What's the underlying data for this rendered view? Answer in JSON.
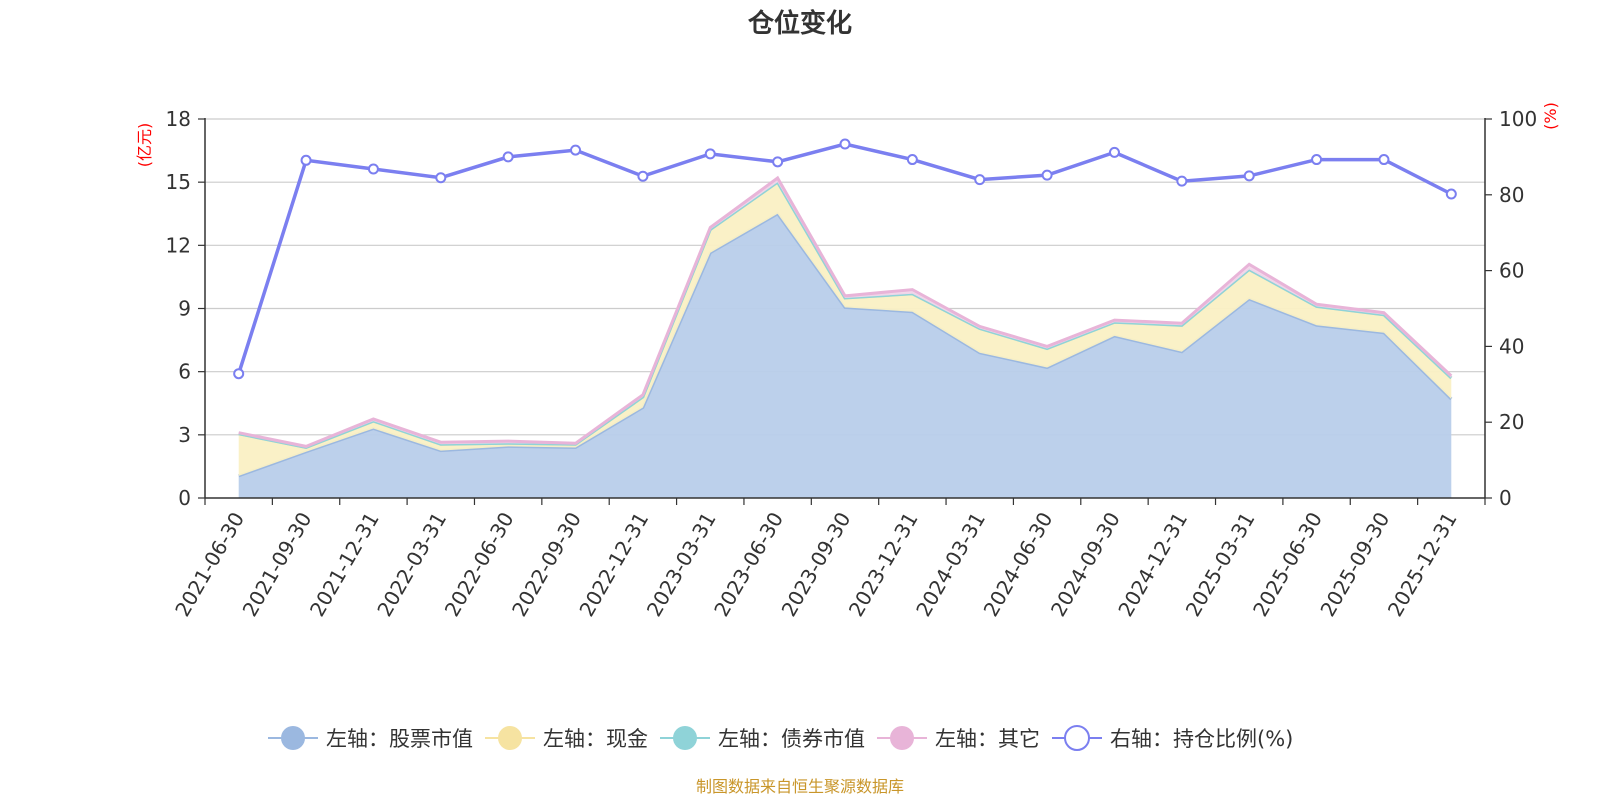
{
  "chart_data": {
    "type": "area",
    "title": "仓位变化",
    "left_axis": {
      "unit": "(亿元)",
      "ticks": [
        "0",
        "3",
        "6",
        "9",
        "12",
        "15",
        "18"
      ],
      "ylim": [
        0,
        18
      ]
    },
    "right_axis": {
      "unit": "(%)",
      "ticks": [
        "0",
        "20",
        "40",
        "60",
        "80",
        "100"
      ],
      "ylim": [
        0,
        100
      ]
    },
    "categories": [
      "2021-06-30",
      "2021-09-30",
      "2021-12-31",
      "2022-03-31",
      "2022-06-30",
      "2022-09-30",
      "2022-12-31",
      "2023-03-31",
      "2023-06-30",
      "2023-09-30",
      "2023-12-31",
      "2024-03-31",
      "2024-06-30",
      "2024-09-30",
      "2024-12-31",
      "2025-03-31",
      "2025-06-30",
      "2025-09-30",
      "2025-12-31"
    ],
    "series": [
      {
        "name": "左轴：股票市值",
        "axis": "left",
        "color": "#9bb8e0",
        "fill": "#b8cdea",
        "values": [
          1.05,
          2.2,
          3.3,
          2.25,
          2.45,
          2.4,
          4.3,
          11.65,
          13.5,
          9.05,
          8.85,
          6.9,
          6.2,
          7.7,
          6.95,
          9.45,
          8.2,
          7.85,
          4.7
        ]
      },
      {
        "name": "左轴：现金",
        "axis": "left",
        "color": "#f6e3a1",
        "fill": "#faf0c4",
        "values": [
          2.0,
          0.2,
          0.35,
          0.3,
          0.15,
          0.15,
          0.5,
          1.1,
          1.5,
          0.45,
          0.85,
          1.15,
          0.9,
          0.65,
          1.25,
          1.4,
          0.9,
          0.85,
          1.0
        ]
      },
      {
        "name": "左轴：债券市值",
        "axis": "left",
        "color": "#8fd3d8",
        "fill": "#b4e3e6",
        "values": [
          0,
          0,
          0,
          0,
          0,
          0,
          0,
          0,
          0,
          0,
          0,
          0,
          0,
          0,
          0,
          0,
          0,
          0,
          0
        ]
      },
      {
        "name": "左轴：其它",
        "axis": "left",
        "color": "#e8b4d8",
        "fill": "#f3d6ea",
        "values": [
          0.05,
          0.05,
          0.1,
          0.1,
          0.1,
          0.05,
          0.1,
          0.1,
          0.2,
          0.1,
          0.2,
          0.1,
          0.1,
          0.1,
          0.1,
          0.25,
          0.1,
          0.1,
          0.1
        ]
      },
      {
        "name": "右轴：持仓比例(%)",
        "axis": "right",
        "color": "#7b7ff0",
        "values": [
          32.8,
          89.1,
          86.8,
          84.5,
          90.0,
          91.8,
          84.9,
          90.8,
          88.7,
          93.4,
          89.3,
          84.0,
          85.2,
          91.2,
          83.6,
          85.0,
          89.3,
          89.3,
          80.2
        ]
      }
    ],
    "source": "制图数据来自恒生聚源数据库"
  }
}
